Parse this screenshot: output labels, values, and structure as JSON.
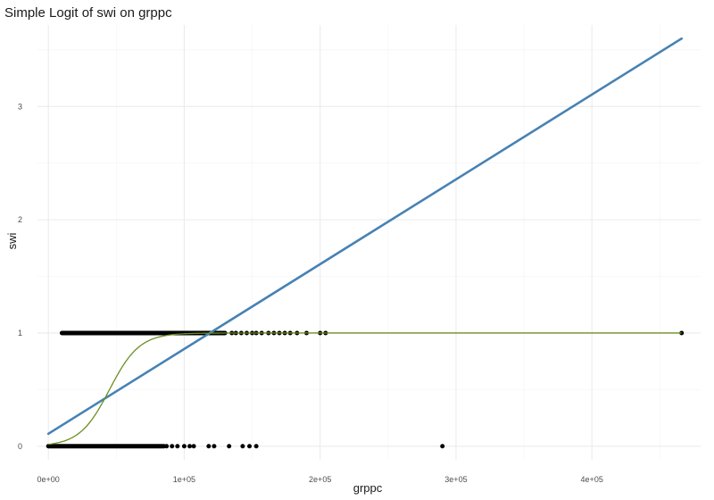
{
  "chart_data": {
    "type": "scatter",
    "title": "Simple Logit of swi on grppc",
    "xlabel": "grppc",
    "ylabel": "swi",
    "xlim": [
      -8000,
      480000
    ],
    "ylim": [
      -0.12,
      3.72
    ],
    "x_ticks": [
      {
        "value": 0,
        "label": "0e+00"
      },
      {
        "value": 100000,
        "label": "1e+05"
      },
      {
        "value": 200000,
        "label": "2e+05"
      },
      {
        "value": 300000,
        "label": "3e+05"
      },
      {
        "value": 400000,
        "label": "4e+05"
      }
    ],
    "y_ticks": [
      {
        "value": 0,
        "label": "0"
      },
      {
        "value": 1,
        "label": "1"
      },
      {
        "value": 2,
        "label": "2"
      },
      {
        "value": 3,
        "label": "3"
      }
    ],
    "grid": true,
    "series": [
      {
        "type": "scatter",
        "color": "#000000",
        "dense_bands": [
          {
            "y": 1,
            "x_from": 10000,
            "x_to": 130000
          },
          {
            "y": 0,
            "x_from": 0,
            "x_to": 85000
          }
        ],
        "points": [
          [
            135000,
            1
          ],
          [
            138000,
            1
          ],
          [
            142000,
            1
          ],
          [
            146000,
            1
          ],
          [
            150000,
            1
          ],
          [
            153000,
            1
          ],
          [
            157000,
            1
          ],
          [
            162000,
            1
          ],
          [
            166000,
            1
          ],
          [
            170000,
            1
          ],
          [
            174000,
            1
          ],
          [
            178000,
            1
          ],
          [
            183000,
            1
          ],
          [
            190000,
            1
          ],
          [
            200000,
            1
          ],
          [
            204000,
            1
          ],
          [
            466000,
            1
          ],
          [
            87000,
            0
          ],
          [
            91000,
            0
          ],
          [
            95000,
            0
          ],
          [
            100000,
            0
          ],
          [
            104000,
            0
          ],
          [
            107000,
            0
          ],
          [
            118000,
            0
          ],
          [
            122000,
            0
          ],
          [
            133000,
            0
          ],
          [
            143000,
            0
          ],
          [
            148000,
            0
          ],
          [
            153000,
            0
          ],
          [
            290000,
            0
          ]
        ]
      },
      {
        "type": "line",
        "color": "#4682B4",
        "x": [
          0,
          466000
        ],
        "y": [
          0.11,
          3.6
        ]
      },
      {
        "type": "line",
        "color": "#6B8E23",
        "function": "logistic",
        "midpoint": 45000,
        "scale": 11000,
        "x_range": [
          0,
          466000
        ]
      }
    ]
  }
}
